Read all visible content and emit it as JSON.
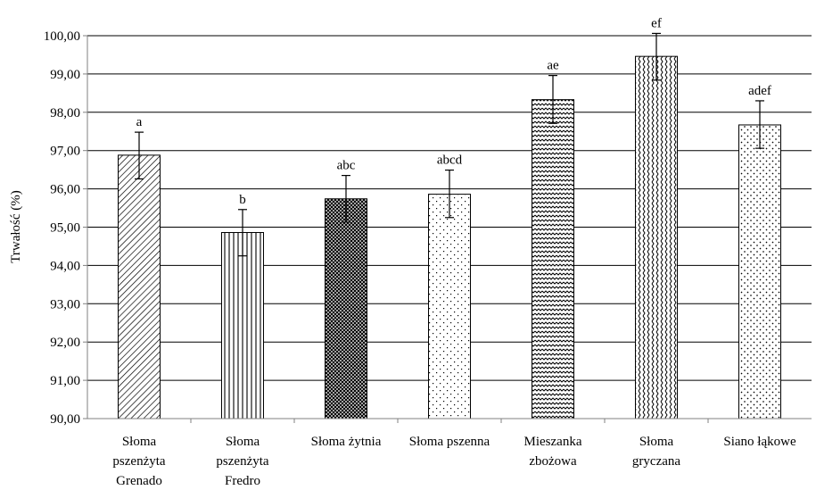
{
  "chart_data": {
    "type": "bar",
    "title": "",
    "xlabel": "",
    "ylabel": "Trwałość (%)",
    "ylim": [
      90,
      100
    ],
    "yticks": [
      "90,00",
      "91,00",
      "92,00",
      "93,00",
      "94,00",
      "95,00",
      "96,00",
      "97,00",
      "98,00",
      "99,00",
      "100,00"
    ],
    "grid": "horizontal",
    "legend": "none",
    "categories": [
      [
        "Słoma",
        "pszenżyta",
        "Grenado"
      ],
      [
        "Słoma",
        "pszenżyta",
        "Fredro"
      ],
      [
        "Słoma żytnia"
      ],
      [
        "Słoma pszenna"
      ],
      [
        "Mieszanka",
        "zbożowa"
      ],
      [
        "Słoma",
        "gryczana"
      ],
      [
        "Siano łąkowe"
      ]
    ],
    "values": [
      96.88,
      94.86,
      95.74,
      95.86,
      98.33,
      99.46,
      97.67
    ],
    "error_low": [
      96.26,
      94.25,
      95.13,
      95.25,
      97.71,
      98.84,
      97.06
    ],
    "error_high": [
      97.48,
      95.46,
      96.35,
      96.49,
      98.96,
      100.06,
      98.3
    ],
    "significance_labels": [
      "a",
      "b",
      "abc",
      "abcd",
      "ae",
      "ef",
      "adef"
    ],
    "patterns": [
      "diagonal-hatch",
      "vertical-lines",
      "dense-crosshatch",
      "sparse-dots",
      "horizontal-zigzag",
      "vertical-wave",
      "diamond-dots"
    ],
    "colors": {
      "bar_fill": "#ffffff",
      "pattern": "#000000",
      "gridline": "#000000",
      "axis": "#808080"
    }
  }
}
